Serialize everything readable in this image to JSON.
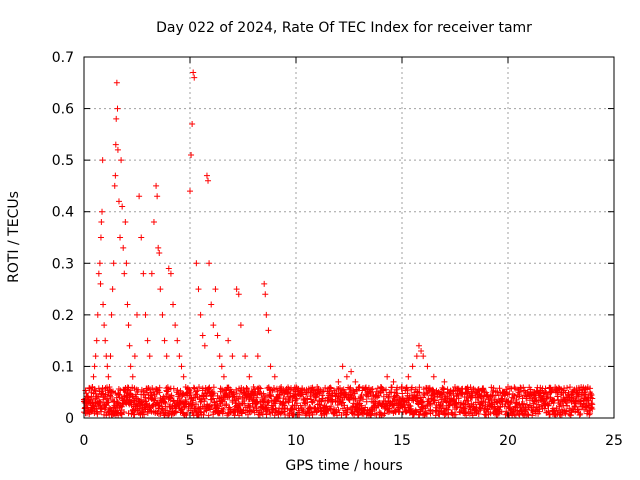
{
  "chart_data": {
    "type": "scatter",
    "title": "Day 022 of 2024, Rate Of TEC Index for receiver tamr",
    "xlabel": "GPS time / hours",
    "ylabel": "ROTI / TECUs",
    "xlim": [
      0,
      25
    ],
    "ylim": [
      0,
      0.7
    ],
    "x_ticks": [
      0,
      5,
      10,
      15,
      20,
      25
    ],
    "y_ticks": [
      0,
      0.1,
      0.2,
      0.3,
      0.4,
      0.5,
      0.6,
      0.7
    ],
    "x_tick_labels": [
      "0",
      "5",
      "10",
      "15",
      "20",
      "25"
    ],
    "y_tick_labels": [
      "0",
      "0.1",
      "0.2",
      "0.3",
      "0.4",
      "0.5",
      "0.6",
      "0.7"
    ],
    "grid": true,
    "marker": "plus",
    "color": "#ff0000",
    "series": [
      {
        "points": [
          [
            0.05,
            0.02
          ],
          [
            0.1,
            0.03
          ],
          [
            0.15,
            0.025
          ],
          [
            0.2,
            0.04
          ],
          [
            0.25,
            0.035
          ],
          [
            0.3,
            0.03
          ],
          [
            0.35,
            0.05
          ],
          [
            0.4,
            0.06
          ],
          [
            0.45,
            0.08
          ],
          [
            0.5,
            0.1
          ],
          [
            0.55,
            0.12
          ],
          [
            0.6,
            0.15
          ],
          [
            0.65,
            0.2
          ],
          [
            0.7,
            0.28
          ],
          [
            0.75,
            0.3
          ],
          [
            0.78,
            0.26
          ],
          [
            0.8,
            0.35
          ],
          [
            0.82,
            0.38
          ],
          [
            0.85,
            0.4
          ],
          [
            0.88,
            0.5
          ],
          [
            0.9,
            0.22
          ],
          [
            0.95,
            0.18
          ],
          [
            1.0,
            0.15
          ],
          [
            1.05,
            0.12
          ],
          [
            1.1,
            0.1
          ],
          [
            1.15,
            0.08
          ],
          [
            1.2,
            0.06
          ],
          [
            1.25,
            0.12
          ],
          [
            1.3,
            0.2
          ],
          [
            1.35,
            0.25
          ],
          [
            1.4,
            0.3
          ],
          [
            1.45,
            0.45
          ],
          [
            1.48,
            0.47
          ],
          [
            1.5,
            0.53
          ],
          [
            1.52,
            0.58
          ],
          [
            1.55,
            0.65
          ],
          [
            1.58,
            0.6
          ],
          [
            1.6,
            0.52
          ],
          [
            1.65,
            0.42
          ],
          [
            1.7,
            0.35
          ],
          [
            1.75,
            0.5
          ],
          [
            1.8,
            0.41
          ],
          [
            1.85,
            0.33
          ],
          [
            1.9,
            0.28
          ],
          [
            1.95,
            0.38
          ],
          [
            2.0,
            0.3
          ],
          [
            2.05,
            0.22
          ],
          [
            2.1,
            0.18
          ],
          [
            2.15,
            0.14
          ],
          [
            2.2,
            0.1
          ],
          [
            2.3,
            0.08
          ],
          [
            2.4,
            0.12
          ],
          [
            2.5,
            0.2
          ],
          [
            2.6,
            0.43
          ],
          [
            2.7,
            0.35
          ],
          [
            2.8,
            0.28
          ],
          [
            2.9,
            0.2
          ],
          [
            3.0,
            0.15
          ],
          [
            3.1,
            0.12
          ],
          [
            3.2,
            0.28
          ],
          [
            3.3,
            0.38
          ],
          [
            3.4,
            0.45
          ],
          [
            3.45,
            0.43
          ],
          [
            3.5,
            0.33
          ],
          [
            3.55,
            0.32
          ],
          [
            3.6,
            0.25
          ],
          [
            3.7,
            0.2
          ],
          [
            3.8,
            0.15
          ],
          [
            3.9,
            0.12
          ],
          [
            4.0,
            0.29
          ],
          [
            4.1,
            0.28
          ],
          [
            4.2,
            0.22
          ],
          [
            4.3,
            0.18
          ],
          [
            4.4,
            0.15
          ],
          [
            4.5,
            0.12
          ],
          [
            4.6,
            0.1
          ],
          [
            4.7,
            0.08
          ],
          [
            4.8,
            0.06
          ],
          [
            4.9,
            0.05
          ],
          [
            5.0,
            0.44
          ],
          [
            5.05,
            0.51
          ],
          [
            5.1,
            0.57
          ],
          [
            5.15,
            0.67
          ],
          [
            5.2,
            0.66
          ],
          [
            5.3,
            0.3
          ],
          [
            5.4,
            0.25
          ],
          [
            5.5,
            0.2
          ],
          [
            5.6,
            0.16
          ],
          [
            5.7,
            0.14
          ],
          [
            5.8,
            0.47
          ],
          [
            5.85,
            0.46
          ],
          [
            5.9,
            0.3
          ],
          [
            6.0,
            0.22
          ],
          [
            6.1,
            0.18
          ],
          [
            6.2,
            0.25
          ],
          [
            6.3,
            0.16
          ],
          [
            6.4,
            0.12
          ],
          [
            6.5,
            0.1
          ],
          [
            6.6,
            0.08
          ],
          [
            6.8,
            0.15
          ],
          [
            7.0,
            0.12
          ],
          [
            7.2,
            0.25
          ],
          [
            7.3,
            0.24
          ],
          [
            7.4,
            0.18
          ],
          [
            7.6,
            0.12
          ],
          [
            7.8,
            0.08
          ],
          [
            8.0,
            0.06
          ],
          [
            8.2,
            0.12
          ],
          [
            8.5,
            0.26
          ],
          [
            8.55,
            0.24
          ],
          [
            8.6,
            0.2
          ],
          [
            8.7,
            0.17
          ],
          [
            8.8,
            0.1
          ],
          [
            9.0,
            0.08
          ],
          [
            9.3,
            0.06
          ],
          [
            9.6,
            0.05
          ],
          [
            10.0,
            0.045
          ],
          [
            10.5,
            0.05
          ],
          [
            11.0,
            0.06
          ],
          [
            11.5,
            0.04
          ],
          [
            12.0,
            0.07
          ],
          [
            12.2,
            0.1
          ],
          [
            12.4,
            0.08
          ],
          [
            12.6,
            0.09
          ],
          [
            12.8,
            0.07
          ],
          [
            13.0,
            0.06
          ],
          [
            13.5,
            0.05
          ],
          [
            14.0,
            0.06
          ],
          [
            14.3,
            0.08
          ],
          [
            14.6,
            0.07
          ],
          [
            15.0,
            0.06
          ],
          [
            15.3,
            0.08
          ],
          [
            15.5,
            0.1
          ],
          [
            15.7,
            0.12
          ],
          [
            15.8,
            0.14
          ],
          [
            15.9,
            0.13
          ],
          [
            16.0,
            0.12
          ],
          [
            16.2,
            0.1
          ],
          [
            16.5,
            0.08
          ],
          [
            17.0,
            0.07
          ],
          [
            17.5,
            0.06
          ],
          [
            18.0,
            0.05
          ],
          [
            18.5,
            0.05
          ],
          [
            19.0,
            0.045
          ],
          [
            19.5,
            0.05
          ],
          [
            20.0,
            0.06
          ],
          [
            20.5,
            0.05
          ],
          [
            21.0,
            0.045
          ],
          [
            21.5,
            0.05
          ],
          [
            22.0,
            0.04
          ],
          [
            22.5,
            0.045
          ],
          [
            23.0,
            0.04
          ],
          [
            23.3,
            0.05
          ],
          [
            23.6,
            0.045
          ],
          [
            23.9,
            0.04
          ]
        ]
      }
    ],
    "floor_band": {
      "from_hour": 0.0,
      "to_hour": 24.0,
      "typical_min": 0.005,
      "typical_max": 0.06
    }
  }
}
